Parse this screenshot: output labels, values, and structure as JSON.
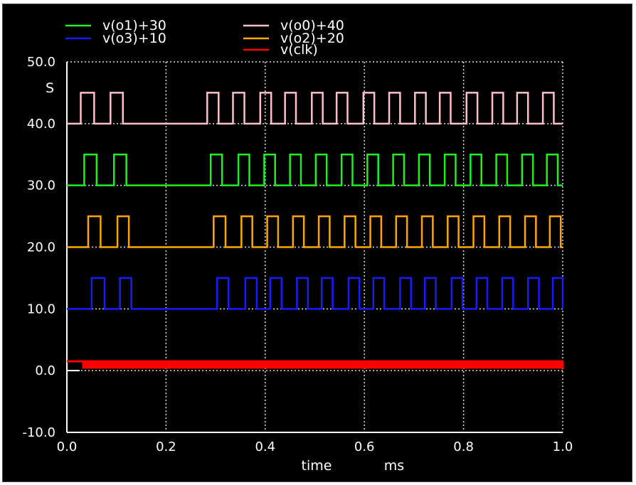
{
  "chart_data": {
    "type": "line",
    "xlabel": "time",
    "xunit": "ms",
    "ylabel": "",
    "yunit": "S",
    "xlim": [
      0.0,
      1.0
    ],
    "ylim": [
      -10.0,
      50.0
    ],
    "grid": "dotted",
    "legend_position": "top",
    "x_ticks": [
      "0.0",
      "0.2",
      "0.4",
      "0.6",
      "0.8",
      "1.0"
    ],
    "y_ticks": [
      "-10.0",
      "0.0",
      "10.0",
      "20.0",
      "30.0",
      "40.0",
      "50.0"
    ],
    "series": [
      {
        "name": "v(o1)+30",
        "color": "#22ee22",
        "base": 30,
        "high": 35,
        "pulses": [
          [
            0.035,
            0.06
          ],
          [
            0.095,
            0.12
          ],
          [
            0.29,
            0.313
          ],
          [
            0.346,
            0.368
          ],
          [
            0.398,
            0.42
          ],
          [
            0.45,
            0.472
          ],
          [
            0.502,
            0.524
          ],
          [
            0.554,
            0.576
          ],
          [
            0.606,
            0.628
          ],
          [
            0.658,
            0.68
          ],
          [
            0.71,
            0.732
          ],
          [
            0.762,
            0.784
          ],
          [
            0.814,
            0.836
          ],
          [
            0.866,
            0.888
          ],
          [
            0.918,
            0.94
          ],
          [
            0.968,
            0.99
          ]
        ]
      },
      {
        "name": "v(o0)+40",
        "color": "#ffc0cb",
        "base": 40,
        "high": 45,
        "pulses": [
          [
            0.028,
            0.055
          ],
          [
            0.088,
            0.113
          ],
          [
            0.283,
            0.306
          ],
          [
            0.335,
            0.358
          ],
          [
            0.39,
            0.412
          ],
          [
            0.44,
            0.462
          ],
          [
            0.494,
            0.516
          ],
          [
            0.544,
            0.566
          ],
          [
            0.598,
            0.62
          ],
          [
            0.65,
            0.672
          ],
          [
            0.702,
            0.724
          ],
          [
            0.752,
            0.774
          ],
          [
            0.806,
            0.828
          ],
          [
            0.858,
            0.88
          ],
          [
            0.908,
            0.93
          ],
          [
            0.96,
            0.982
          ]
        ]
      },
      {
        "name": "v(o3)+10",
        "color": "#1a1aff",
        "base": 10,
        "high": 15,
        "pulses": [
          [
            0.05,
            0.076
          ],
          [
            0.107,
            0.13
          ],
          [
            0.303,
            0.326
          ],
          [
            0.36,
            0.383
          ],
          [
            0.41,
            0.433
          ],
          [
            0.464,
            0.486
          ],
          [
            0.514,
            0.536
          ],
          [
            0.568,
            0.59
          ],
          [
            0.618,
            0.64
          ],
          [
            0.672,
            0.694
          ],
          [
            0.722,
            0.744
          ],
          [
            0.776,
            0.798
          ],
          [
            0.826,
            0.848
          ],
          [
            0.878,
            0.9
          ],
          [
            0.93,
            0.952
          ],
          [
            0.98,
            1.0
          ]
        ]
      },
      {
        "name": "v(o2)+20",
        "color": "#ffa500",
        "base": 20,
        "high": 25,
        "pulses": [
          [
            0.043,
            0.068
          ],
          [
            0.102,
            0.125
          ],
          [
            0.296,
            0.32
          ],
          [
            0.352,
            0.374
          ],
          [
            0.404,
            0.426
          ],
          [
            0.456,
            0.478
          ],
          [
            0.508,
            0.53
          ],
          [
            0.56,
            0.582
          ],
          [
            0.612,
            0.634
          ],
          [
            0.664,
            0.686
          ],
          [
            0.716,
            0.738
          ],
          [
            0.768,
            0.79
          ],
          [
            0.82,
            0.842
          ],
          [
            0.872,
            0.894
          ],
          [
            0.924,
            0.946
          ],
          [
            0.974,
            0.996
          ]
        ]
      },
      {
        "name": "v(clk)",
        "color": "#ff0000",
        "base": 0.5,
        "high": 1.5,
        "clock_period": 0.006,
        "clock_start": 0.03
      }
    ]
  }
}
